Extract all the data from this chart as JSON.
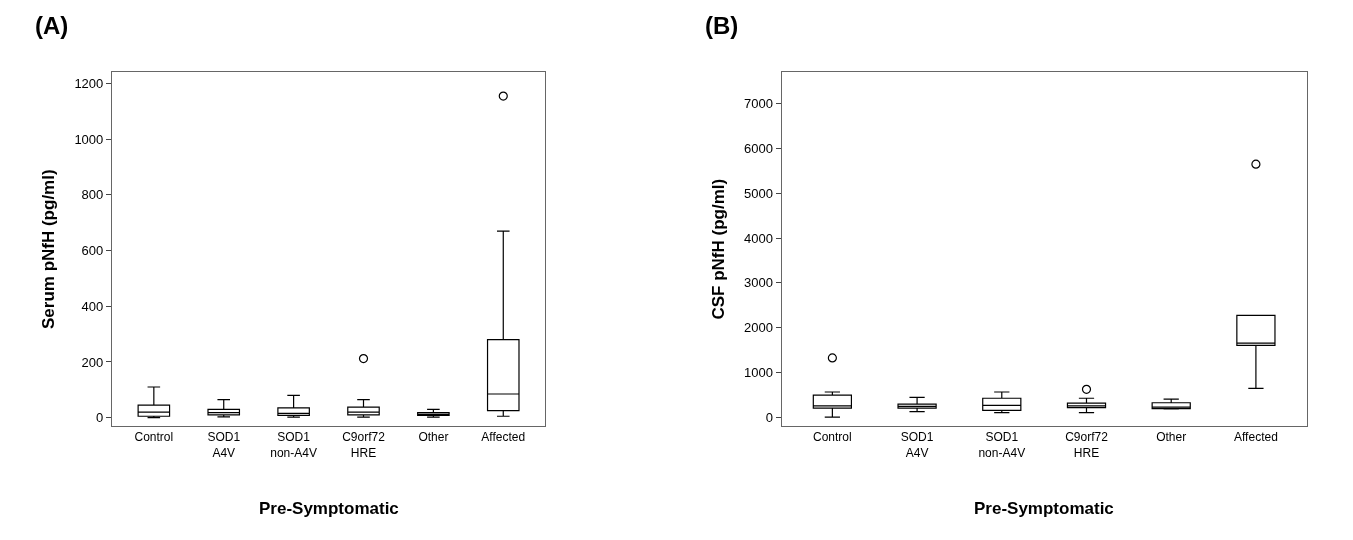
{
  "chart_data": [
    {
      "type": "box",
      "title": "(A)",
      "ylabel": "Serum pNfH (pg/ml)",
      "categories": [
        "Control",
        "SOD1 A4V",
        "SOD1 non-A4V",
        "C9orf72 HRE",
        "Other",
        "Affected"
      ],
      "ylim": [
        -30,
        1240
      ],
      "yticks": [
        0,
        200,
        400,
        600,
        800,
        1000,
        1200
      ],
      "marker": "circle",
      "color": "#000000",
      "boxes": [
        {
          "low": 0,
          "q1": 5,
          "median": 20,
          "q3": 45,
          "high": 110
        },
        {
          "low": 3,
          "q1": 10,
          "median": 18,
          "q3": 30,
          "high": 65
        },
        {
          "low": 2,
          "q1": 8,
          "median": 15,
          "q3": 35,
          "high": 80
        },
        {
          "low": 2,
          "q1": 10,
          "median": 20,
          "q3": 38,
          "high": 65,
          "outliers": [
            212
          ]
        },
        {
          "low": 2,
          "q1": 8,
          "median": 12,
          "q3": 18,
          "high": 30
        },
        {
          "low": 5,
          "q1": 25,
          "median": 85,
          "q3": 280,
          "high": 670,
          "outliers": [
            1155
          ]
        }
      ],
      "annotations": [
        "Pre-Symptomatic"
      ]
    },
    {
      "type": "box",
      "title": "(B)",
      "ylabel": "CSF pNfH (pg/ml)",
      "categories": [
        "Control",
        "SOD1 A4V",
        "SOD1 non-A4V",
        "C9orf72 HRE",
        "Other",
        "Affected"
      ],
      "ylim": [
        -200,
        7700
      ],
      "yticks": [
        0,
        1000,
        2000,
        3000,
        4000,
        5000,
        6000,
        7000
      ],
      "marker": "circle",
      "color": "#000000",
      "boxes": [
        {
          "low": 0,
          "q1": 200,
          "median": 250,
          "q3": 490,
          "high": 560,
          "outliers": [
            1320
          ]
        },
        {
          "low": 120,
          "q1": 200,
          "median": 240,
          "q3": 290,
          "high": 440
        },
        {
          "low": 100,
          "q1": 150,
          "median": 260,
          "q3": 420,
          "high": 560
        },
        {
          "low": 100,
          "q1": 210,
          "median": 250,
          "q3": 310,
          "high": 420,
          "outliers": [
            620
          ]
        },
        {
          "low": 180,
          "q1": 190,
          "median": 220,
          "q3": 320,
          "high": 400
        },
        {
          "low": 640,
          "q1": 1600,
          "median": 1650,
          "q3": 2270,
          "high": 2270,
          "outliers": [
            5650
          ]
        }
      ],
      "annotations": [
        "Pre-Symptomatic"
      ]
    }
  ]
}
